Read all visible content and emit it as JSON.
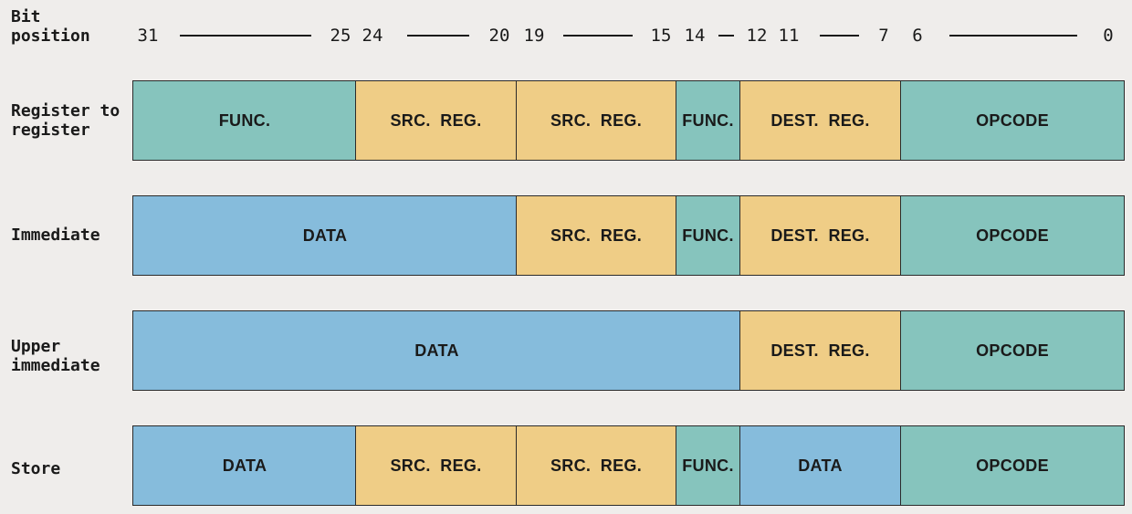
{
  "header": {
    "label": "Bit\nposition",
    "bit_numbers": [
      "31",
      "25",
      "24",
      "20",
      "19",
      "15",
      "14",
      "12",
      "11",
      "7",
      "6",
      "0"
    ]
  },
  "colors": {
    "teal": "#86c4bd",
    "yellow": "#efcd86",
    "blue": "#86bcdc",
    "background": "#efedeb"
  },
  "rows": [
    {
      "label": "Register to\nregister",
      "fields": [
        {
          "name": "FUNC.",
          "color": "teal",
          "hi": 31,
          "lo": 25
        },
        {
          "name": "SRC.  REG.",
          "color": "yellow",
          "hi": 24,
          "lo": 20
        },
        {
          "name": "SRC.  REG.",
          "color": "yellow",
          "hi": 19,
          "lo": 15
        },
        {
          "name": "FUNC.",
          "color": "teal",
          "hi": 14,
          "lo": 12
        },
        {
          "name": "DEST.  REG.",
          "color": "yellow",
          "hi": 11,
          "lo": 7
        },
        {
          "name": "OPCODE",
          "color": "teal",
          "hi": 6,
          "lo": 0
        }
      ]
    },
    {
      "label": "Immediate",
      "fields": [
        {
          "name": "DATA",
          "color": "blue",
          "hi": 31,
          "lo": 20
        },
        {
          "name": "SRC.  REG.",
          "color": "yellow",
          "hi": 19,
          "lo": 15
        },
        {
          "name": "FUNC.",
          "color": "teal",
          "hi": 14,
          "lo": 12
        },
        {
          "name": "DEST.  REG.",
          "color": "yellow",
          "hi": 11,
          "lo": 7
        },
        {
          "name": "OPCODE",
          "color": "teal",
          "hi": 6,
          "lo": 0
        }
      ]
    },
    {
      "label": "Upper\nimmediate",
      "fields": [
        {
          "name": "DATA",
          "color": "blue",
          "hi": 31,
          "lo": 12
        },
        {
          "name": "DEST.  REG.",
          "color": "yellow",
          "hi": 11,
          "lo": 7
        },
        {
          "name": "OPCODE",
          "color": "teal",
          "hi": 6,
          "lo": 0
        }
      ]
    },
    {
      "label": "Store",
      "fields": [
        {
          "name": "DATA",
          "color": "blue",
          "hi": 31,
          "lo": 25
        },
        {
          "name": "SRC.  REG.",
          "color": "yellow",
          "hi": 24,
          "lo": 20
        },
        {
          "name": "SRC.  REG.",
          "color": "yellow",
          "hi": 19,
          "lo": 15
        },
        {
          "name": "FUNC.",
          "color": "teal",
          "hi": 14,
          "lo": 12
        },
        {
          "name": "DATA",
          "color": "blue",
          "hi": 11,
          "lo": 7
        },
        {
          "name": "OPCODE",
          "color": "teal",
          "hi": 6,
          "lo": 0
        }
      ]
    }
  ]
}
